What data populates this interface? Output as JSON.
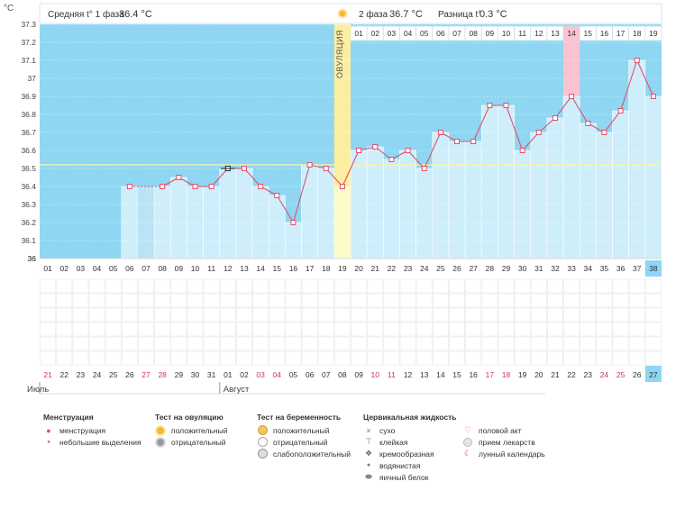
{
  "chart_data": {
    "type": "line",
    "unit": "°C",
    "header": {
      "phase1_label": "Средняя t° 1 фаза",
      "phase1_value": "36.4 °C",
      "phase2_label": "2 фаза",
      "phase2_value": "36.7 °C",
      "diff_label": "Разница t°",
      "diff_value": "0.3 °C"
    },
    "ovulation_label": "ОВУЛЯЦИЯ",
    "ovulation_day": 19,
    "y_ticks": [
      "37.3",
      "37.2",
      "37.1",
      "37",
      "36.9",
      "36.8",
      "36.7",
      "36.6",
      "36.5",
      "36.4",
      "36.3",
      "36.2",
      "36.1",
      "36"
    ],
    "ylim": [
      36.0,
      37.3
    ],
    "coverline": 36.52,
    "cycle_days": [
      "01",
      "02",
      "03",
      "04",
      "05",
      "06",
      "07",
      "08",
      "09",
      "10",
      "11",
      "12",
      "13",
      "14",
      "15",
      "16",
      "17",
      "18",
      "19",
      "20",
      "21",
      "22",
      "23",
      "24",
      "25",
      "26",
      "27",
      "28",
      "29",
      "30",
      "31",
      "32",
      "33",
      "34",
      "35",
      "36",
      "37",
      "38"
    ],
    "current_day": "38",
    "luteal_days": [
      "01",
      "02",
      "03",
      "04",
      "05",
      "06",
      "07",
      "08",
      "09",
      "10",
      "11",
      "12",
      "13",
      "14",
      "15",
      "16",
      "17",
      "18",
      "19"
    ],
    "highlighted_luteal_day": "14",
    "calendar_days": [
      "21",
      "22",
      "23",
      "24",
      "25",
      "26",
      "27",
      "28",
      "29",
      "30",
      "31",
      "01",
      "02",
      "03",
      "04",
      "05",
      "06",
      "07",
      "08",
      "09",
      "10",
      "11",
      "12",
      "13",
      "14",
      "15",
      "16",
      "17",
      "18",
      "19",
      "20",
      "21",
      "22",
      "23",
      "24",
      "25",
      "26",
      "27"
    ],
    "weekend_days": [
      1,
      7,
      8,
      14,
      15,
      21,
      22,
      28,
      29,
      35,
      36
    ],
    "current_calendar_day": "27",
    "months": [
      {
        "label": "Июль",
        "start_day": 1
      },
      {
        "label": "Август",
        "start_day": 12
      }
    ],
    "series": [
      {
        "values": [
          null,
          null,
          null,
          null,
          null,
          36.4,
          null,
          36.4,
          36.45,
          36.4,
          36.4,
          36.5,
          36.5,
          36.4,
          36.35,
          36.2,
          36.52,
          36.5,
          36.4,
          36.6,
          36.62,
          36.55,
          36.6,
          36.5,
          36.7,
          36.65,
          36.65,
          36.85,
          36.85,
          36.6,
          36.7,
          36.78,
          36.9,
          36.75,
          36.7,
          36.82,
          37.1,
          36.9
        ]
      }
    ],
    "dashed_segment": [
      6,
      8
    ],
    "selected_point_day": 12,
    "bar_colors": {
      "no_data": "#b9e4f5",
      "recorded": "#cfeefb",
      "ovulation": "#fdfbc7",
      "highlight": "#fbc2d0"
    },
    "accent_colors": {
      "line": "#e0506e",
      "background": "#8fd6f2",
      "ovulation_band": "#fceea0",
      "coverline": "#fff59a",
      "current_day": "#8fd6f2"
    }
  },
  "legend": {
    "menstruation": {
      "title": "Менструация",
      "items": [
        "менструация",
        "небольшие выделения"
      ]
    },
    "ovulation_test": {
      "title": "Тест на овуляцию",
      "items": [
        "положительный",
        "отрицательный"
      ]
    },
    "pregnancy_test": {
      "title": "Тест на беременность",
      "items": [
        "положительный",
        "отрицательный",
        "слабоположительный"
      ]
    },
    "cervical_fluid": {
      "title": "Цервикальная жидкость",
      "items": [
        "сухо",
        "клейкая",
        "кремообразная",
        "водянистая",
        "яичный белок"
      ]
    },
    "other": {
      "items": [
        "половой акт",
        "прием лекарств",
        "лунный календарь"
      ]
    }
  }
}
